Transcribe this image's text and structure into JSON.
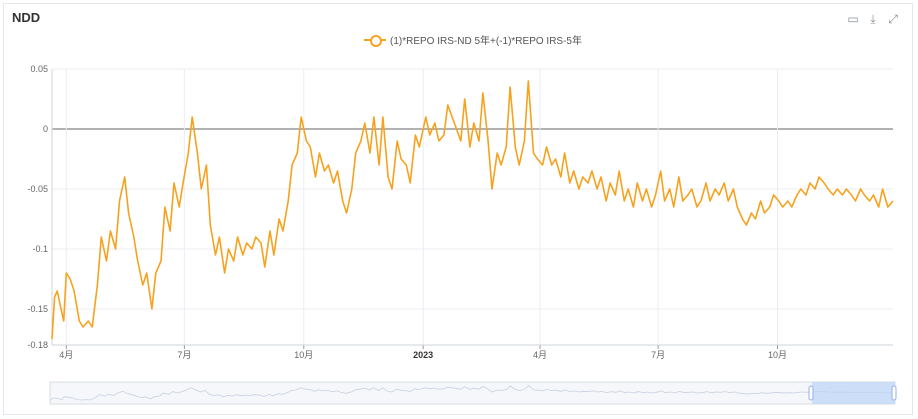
{
  "title": "NDD",
  "toolbar": {
    "icons": [
      "data-view-icon",
      "download-icon",
      "expand-icon"
    ]
  },
  "colors": {
    "series": "#f7a21e",
    "grid": "#e9edf2",
    "zero_line": "#666666",
    "axis_text": "#666666"
  },
  "chart_data": {
    "type": "line",
    "title": "NDD",
    "xlabel": "",
    "ylabel": "",
    "ylim": [
      -0.18,
      0.05
    ],
    "yticks": [
      0.05,
      0,
      -0.05,
      -0.1,
      -0.15,
      -0.18
    ],
    "yticklabels": [
      "0.05",
      "0",
      "-0.05",
      "-0.1",
      "-0.15",
      "-0.18"
    ],
    "xticks": [
      {
        "date": "2022-04-01",
        "label": "4月"
      },
      {
        "date": "2022-07-01",
        "label": "7月"
      },
      {
        "date": "2022-10-01",
        "label": "10月"
      },
      {
        "date": "2023-01-01",
        "label": "2023",
        "bold": true
      },
      {
        "date": "2023-04-01",
        "label": "4月"
      },
      {
        "date": "2023-07-01",
        "label": "7月"
      },
      {
        "date": "2023-10-01",
        "label": "10月"
      }
    ],
    "xlim": [
      "2022-03-21",
      "2023-12-29"
    ],
    "grid": true,
    "legend_position": "top-center",
    "series": [
      {
        "name": "(1)*REPO IRS-ND 5年+(-1)*REPO IRS-5年",
        "points": [
          [
            "2022-03-21",
            -0.175
          ],
          [
            "2022-03-23",
            -0.14
          ],
          [
            "2022-03-25",
            -0.135
          ],
          [
            "2022-03-28",
            -0.15
          ],
          [
            "2022-03-30",
            -0.16
          ],
          [
            "2022-04-01",
            -0.12
          ],
          [
            "2022-04-04",
            -0.125
          ],
          [
            "2022-04-07",
            -0.135
          ],
          [
            "2022-04-11",
            -0.16
          ],
          [
            "2022-04-14",
            -0.165
          ],
          [
            "2022-04-18",
            -0.16
          ],
          [
            "2022-04-21",
            -0.165
          ],
          [
            "2022-04-25",
            -0.13
          ],
          [
            "2022-04-28",
            -0.09
          ],
          [
            "2022-05-02",
            -0.11
          ],
          [
            "2022-05-05",
            -0.085
          ],
          [
            "2022-05-09",
            -0.1
          ],
          [
            "2022-05-12",
            -0.06
          ],
          [
            "2022-05-16",
            -0.04
          ],
          [
            "2022-05-19",
            -0.07
          ],
          [
            "2022-05-23",
            -0.09
          ],
          [
            "2022-05-26",
            -0.11
          ],
          [
            "2022-05-30",
            -0.13
          ],
          [
            "2022-06-02",
            -0.12
          ],
          [
            "2022-06-06",
            -0.15
          ],
          [
            "2022-06-09",
            -0.12
          ],
          [
            "2022-06-13",
            -0.11
          ],
          [
            "2022-06-16",
            -0.065
          ],
          [
            "2022-06-20",
            -0.085
          ],
          [
            "2022-06-23",
            -0.045
          ],
          [
            "2022-06-27",
            -0.065
          ],
          [
            "2022-06-30",
            -0.045
          ],
          [
            "2022-07-04",
            -0.02
          ],
          [
            "2022-07-07",
            0.01
          ],
          [
            "2022-07-11",
            -0.02
          ],
          [
            "2022-07-14",
            -0.05
          ],
          [
            "2022-07-18",
            -0.03
          ],
          [
            "2022-07-21",
            -0.08
          ],
          [
            "2022-07-25",
            -0.105
          ],
          [
            "2022-07-28",
            -0.09
          ],
          [
            "2022-08-01",
            -0.12
          ],
          [
            "2022-08-04",
            -0.1
          ],
          [
            "2022-08-08",
            -0.11
          ],
          [
            "2022-08-11",
            -0.09
          ],
          [
            "2022-08-15",
            -0.105
          ],
          [
            "2022-08-18",
            -0.095
          ],
          [
            "2022-08-22",
            -0.1
          ],
          [
            "2022-08-25",
            -0.09
          ],
          [
            "2022-08-29",
            -0.095
          ],
          [
            "2022-09-01",
            -0.115
          ],
          [
            "2022-09-05",
            -0.085
          ],
          [
            "2022-09-08",
            -0.105
          ],
          [
            "2022-09-12",
            -0.075
          ],
          [
            "2022-09-15",
            -0.085
          ],
          [
            "2022-09-19",
            -0.06
          ],
          [
            "2022-09-22",
            -0.03
          ],
          [
            "2022-09-26",
            -0.02
          ],
          [
            "2022-09-29",
            0.01
          ],
          [
            "2022-10-03",
            -0.01
          ],
          [
            "2022-10-06",
            -0.015
          ],
          [
            "2022-10-10",
            -0.04
          ],
          [
            "2022-10-13",
            -0.02
          ],
          [
            "2022-10-17",
            -0.035
          ],
          [
            "2022-10-20",
            -0.03
          ],
          [
            "2022-10-24",
            -0.045
          ],
          [
            "2022-10-27",
            -0.035
          ],
          [
            "2022-10-31",
            -0.06
          ],
          [
            "2022-11-03",
            -0.07
          ],
          [
            "2022-11-07",
            -0.05
          ],
          [
            "2022-11-10",
            -0.02
          ],
          [
            "2022-11-14",
            -0.01
          ],
          [
            "2022-11-17",
            0.005
          ],
          [
            "2022-11-21",
            -0.02
          ],
          [
            "2022-11-24",
            0.01
          ],
          [
            "2022-11-28",
            -0.03
          ],
          [
            "2022-12-01",
            0.01
          ],
          [
            "2022-12-05",
            -0.04
          ],
          [
            "2022-12-08",
            -0.05
          ],
          [
            "2022-12-12",
            -0.01
          ],
          [
            "2022-12-15",
            -0.025
          ],
          [
            "2022-12-19",
            -0.03
          ],
          [
            "2022-12-22",
            -0.045
          ],
          [
            "2022-12-26",
            -0.005
          ],
          [
            "2022-12-29",
            -0.015
          ],
          [
            "2023-01-03",
            0.01
          ],
          [
            "2023-01-06",
            -0.005
          ],
          [
            "2023-01-10",
            0.005
          ],
          [
            "2023-01-13",
            -0.01
          ],
          [
            "2023-01-17",
            -0.005
          ],
          [
            "2023-01-20",
            0.02
          ],
          [
            "2023-01-30",
            -0.01
          ],
          [
            "2023-02-02",
            0.025
          ],
          [
            "2023-02-06",
            -0.015
          ],
          [
            "2023-02-09",
            0.005
          ],
          [
            "2023-02-13",
            -0.01
          ],
          [
            "2023-02-16",
            0.03
          ],
          [
            "2023-02-20",
            -0.01
          ],
          [
            "2023-02-23",
            -0.05
          ],
          [
            "2023-02-27",
            -0.02
          ],
          [
            "2023-03-02",
            -0.03
          ],
          [
            "2023-03-06",
            -0.015
          ],
          [
            "2023-03-09",
            0.035
          ],
          [
            "2023-03-13",
            -0.015
          ],
          [
            "2023-03-16",
            -0.03
          ],
          [
            "2023-03-20",
            -0.01
          ],
          [
            "2023-03-23",
            0.04
          ],
          [
            "2023-03-27",
            -0.02
          ],
          [
            "2023-03-30",
            -0.025
          ],
          [
            "2023-04-03",
            -0.03
          ],
          [
            "2023-04-06",
            -0.015
          ],
          [
            "2023-04-10",
            -0.03
          ],
          [
            "2023-04-13",
            -0.025
          ],
          [
            "2023-04-17",
            -0.04
          ],
          [
            "2023-04-20",
            -0.02
          ],
          [
            "2023-04-24",
            -0.045
          ],
          [
            "2023-04-27",
            -0.035
          ],
          [
            "2023-05-01",
            -0.05
          ],
          [
            "2023-05-04",
            -0.04
          ],
          [
            "2023-05-08",
            -0.045
          ],
          [
            "2023-05-11",
            -0.035
          ],
          [
            "2023-05-15",
            -0.05
          ],
          [
            "2023-05-18",
            -0.04
          ],
          [
            "2023-05-22",
            -0.06
          ],
          [
            "2023-05-25",
            -0.045
          ],
          [
            "2023-05-29",
            -0.055
          ],
          [
            "2023-06-01",
            -0.035
          ],
          [
            "2023-06-05",
            -0.06
          ],
          [
            "2023-06-08",
            -0.05
          ],
          [
            "2023-06-12",
            -0.065
          ],
          [
            "2023-06-15",
            -0.045
          ],
          [
            "2023-06-19",
            -0.06
          ],
          [
            "2023-06-22",
            -0.05
          ],
          [
            "2023-06-26",
            -0.065
          ],
          [
            "2023-06-29",
            -0.055
          ],
          [
            "2023-07-03",
            -0.035
          ],
          [
            "2023-07-06",
            -0.06
          ],
          [
            "2023-07-10",
            -0.05
          ],
          [
            "2023-07-13",
            -0.065
          ],
          [
            "2023-07-17",
            -0.04
          ],
          [
            "2023-07-20",
            -0.06
          ],
          [
            "2023-07-24",
            -0.055
          ],
          [
            "2023-07-27",
            -0.05
          ],
          [
            "2023-07-31",
            -0.065
          ],
          [
            "2023-08-03",
            -0.06
          ],
          [
            "2023-08-07",
            -0.045
          ],
          [
            "2023-08-10",
            -0.06
          ],
          [
            "2023-08-14",
            -0.05
          ],
          [
            "2023-08-17",
            -0.055
          ],
          [
            "2023-08-21",
            -0.045
          ],
          [
            "2023-08-24",
            -0.06
          ],
          [
            "2023-08-28",
            -0.05
          ],
          [
            "2023-08-31",
            -0.065
          ],
          [
            "2023-09-04",
            -0.075
          ],
          [
            "2023-09-07",
            -0.08
          ],
          [
            "2023-09-11",
            -0.07
          ],
          [
            "2023-09-14",
            -0.075
          ],
          [
            "2023-09-18",
            -0.06
          ],
          [
            "2023-09-21",
            -0.07
          ],
          [
            "2023-09-25",
            -0.065
          ],
          [
            "2023-09-28",
            -0.055
          ],
          [
            "2023-10-02",
            -0.06
          ],
          [
            "2023-10-05",
            -0.065
          ],
          [
            "2023-10-09",
            -0.06
          ],
          [
            "2023-10-12",
            -0.065
          ],
          [
            "2023-10-16",
            -0.055
          ],
          [
            "2023-10-19",
            -0.05
          ],
          [
            "2023-10-23",
            -0.055
          ],
          [
            "2023-10-26",
            -0.045
          ],
          [
            "2023-10-30",
            -0.05
          ],
          [
            "2023-11-02",
            -0.04
          ],
          [
            "2023-11-06",
            -0.045
          ],
          [
            "2023-11-09",
            -0.05
          ],
          [
            "2023-11-13",
            -0.055
          ],
          [
            "2023-11-16",
            -0.05
          ],
          [
            "2023-11-20",
            -0.055
          ],
          [
            "2023-11-23",
            -0.05
          ],
          [
            "2023-11-27",
            -0.055
          ],
          [
            "2023-11-30",
            -0.06
          ],
          [
            "2023-12-04",
            -0.05
          ],
          [
            "2023-12-07",
            -0.055
          ],
          [
            "2023-12-11",
            -0.06
          ],
          [
            "2023-12-14",
            -0.055
          ],
          [
            "2023-12-18",
            -0.065
          ],
          [
            "2023-12-21",
            -0.05
          ],
          [
            "2023-12-25",
            -0.065
          ],
          [
            "2023-12-29",
            -0.06
          ]
        ]
      }
    ]
  }
}
